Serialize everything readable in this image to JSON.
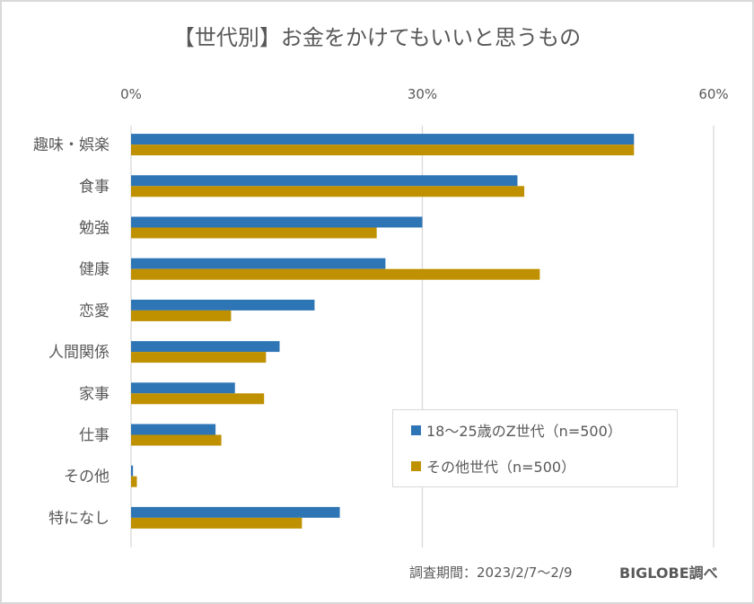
{
  "chart_data": {
    "type": "bar",
    "orientation": "horizontal",
    "title": "【世代別】お金をかけてもいいと思うもの",
    "xlabel": "",
    "ylabel": "",
    "xlim": [
      0,
      60
    ],
    "xticks": [
      "0%",
      "30%",
      "60%"
    ],
    "xtick_values": [
      0,
      30,
      60
    ],
    "grid": true,
    "legend_position": "bottom-right",
    "categories": [
      "趣味・娯楽",
      "食事",
      "勉強",
      "健康",
      "恋愛",
      "人間関係",
      "家事",
      "仕事",
      "その他",
      "特になし"
    ],
    "series": [
      {
        "name": "18〜25歳のZ世代（n=500）",
        "color": "#2e75b6",
        "values": [
          51.8,
          39.8,
          30.0,
          26.2,
          18.9,
          15.3,
          10.7,
          8.7,
          0.2,
          21.5
        ]
      },
      {
        "name": "その他世代（n=500）",
        "color": "#bf9000",
        "values": [
          51.8,
          40.5,
          25.3,
          42.1,
          10.3,
          13.9,
          13.7,
          9.3,
          0.6,
          17.6
        ]
      }
    ]
  },
  "footer": {
    "survey_period": "調査期間：2023/2/7〜2/9",
    "source": "BIGLOBE調べ"
  }
}
